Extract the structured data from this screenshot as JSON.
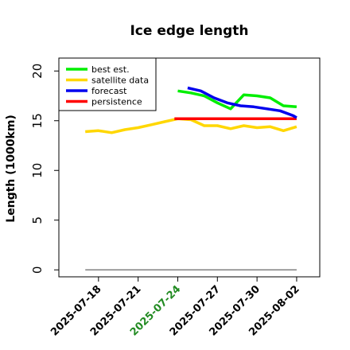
{
  "chart_data": {
    "type": "line",
    "title": "Ice edge length",
    "ylabel": "Length (1000km)",
    "xlabel": "",
    "ylim": [
      -0.7,
      21.3
    ],
    "xlim": [
      "2025-07-15T00:00",
      "2025-08-03T18:00"
    ],
    "yticks": [
      0,
      5,
      10,
      15,
      20
    ],
    "xticks": [
      "2025-07-18",
      "2025-07-21",
      "2025-07-24",
      "2025-07-27",
      "2025-07-30",
      "2025-08-02"
    ],
    "xtick_colors": [
      "#000000",
      "#000000",
      "#228B22",
      "#000000",
      "#000000",
      "#000000"
    ],
    "legend_position": "top-left",
    "series": [
      {
        "name": "best est.",
        "color": "#00ee00",
        "x": [
          "2025-07-24",
          "2025-07-25",
          "2025-07-26",
          "2025-07-27",
          "2025-07-28",
          "2025-07-29",
          "2025-07-30",
          "2025-07-31",
          "2025-08-01",
          "2025-08-02"
        ],
        "y": [
          18.0,
          17.8,
          17.5,
          16.8,
          16.2,
          17.6,
          17.5,
          17.3,
          16.5,
          16.4
        ]
      },
      {
        "name": "satellite data",
        "color": "#ffd700",
        "x": [
          "2025-07-17",
          "2025-07-18",
          "2025-07-19",
          "2025-07-20",
          "2025-07-21",
          "2025-07-22",
          "2025-07-23",
          "2025-07-24",
          "2025-07-25",
          "2025-07-26",
          "2025-07-27",
          "2025-07-28",
          "2025-07-29",
          "2025-07-30",
          "2025-07-31",
          "2025-08-01",
          "2025-08-02"
        ],
        "y": [
          13.9,
          14.0,
          13.8,
          14.1,
          14.3,
          14.6,
          14.9,
          15.2,
          15.1,
          14.5,
          14.5,
          14.2,
          14.5,
          14.3,
          14.4,
          14.0,
          14.4
        ]
      },
      {
        "name": "forecast",
        "color": "#0000ee",
        "x": [
          "2025-07-24T18:00",
          "2025-07-25T18:00",
          "2025-07-26T18:00",
          "2025-07-27T18:00",
          "2025-07-28T18:00",
          "2025-07-29T18:00",
          "2025-07-30T18:00",
          "2025-07-31T18:00",
          "2025-08-01T18:00",
          "2025-08-02"
        ],
        "y": [
          18.3,
          18.0,
          17.3,
          16.8,
          16.5,
          16.4,
          16.2,
          16.0,
          15.5,
          15.3
        ]
      },
      {
        "name": "persistence",
        "color": "#ff0000",
        "x": [
          "2025-07-23T18:00",
          "2025-08-02"
        ],
        "y": [
          15.2,
          15.2
        ]
      }
    ],
    "baseline": {
      "y": 0,
      "x": [
        "2025-07-17",
        "2025-08-02"
      ],
      "color": "#808080"
    }
  }
}
